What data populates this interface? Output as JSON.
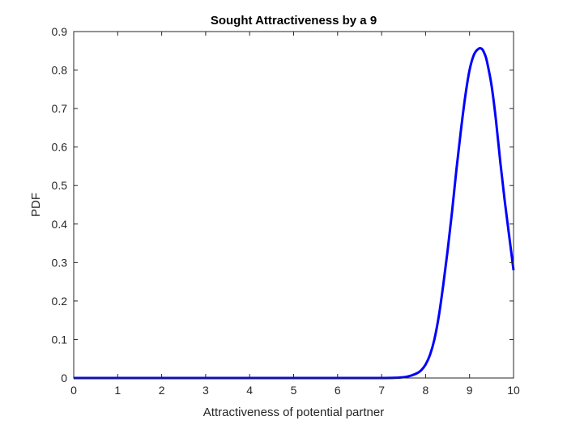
{
  "chart_data": {
    "type": "line",
    "title": "Sought Attractiveness by a 9",
    "xlabel": "Attractiveness of potential partner",
    "ylabel": "PDF",
    "xlim": [
      0,
      10
    ],
    "ylim": [
      0,
      0.9
    ],
    "xticks": [
      0,
      1,
      2,
      3,
      4,
      5,
      6,
      7,
      8,
      9,
      10
    ],
    "yticks": [
      0,
      0.1,
      0.2,
      0.3,
      0.4,
      0.5,
      0.6,
      0.7,
      0.8,
      0.9
    ],
    "grid": false,
    "series": [
      {
        "color": "#0000ff",
        "x": [
          0,
          1,
          2,
          3,
          4,
          5,
          6,
          7,
          7.4,
          7.6,
          7.8,
          7.9,
          8.0,
          8.1,
          8.2,
          8.3,
          8.4,
          8.5,
          8.6,
          8.7,
          8.8,
          8.9,
          9.0,
          9.1,
          9.2,
          9.28,
          9.35,
          9.4,
          9.5,
          9.6,
          9.7,
          9.8,
          9.9,
          10.0
        ],
        "y": [
          0,
          0,
          0,
          0,
          0,
          0,
          0,
          0,
          0.001,
          0.004,
          0.012,
          0.02,
          0.035,
          0.06,
          0.1,
          0.16,
          0.24,
          0.33,
          0.43,
          0.54,
          0.64,
          0.73,
          0.8,
          0.84,
          0.855,
          0.855,
          0.84,
          0.82,
          0.76,
          0.67,
          0.56,
          0.46,
          0.37,
          0.28
        ]
      }
    ]
  }
}
